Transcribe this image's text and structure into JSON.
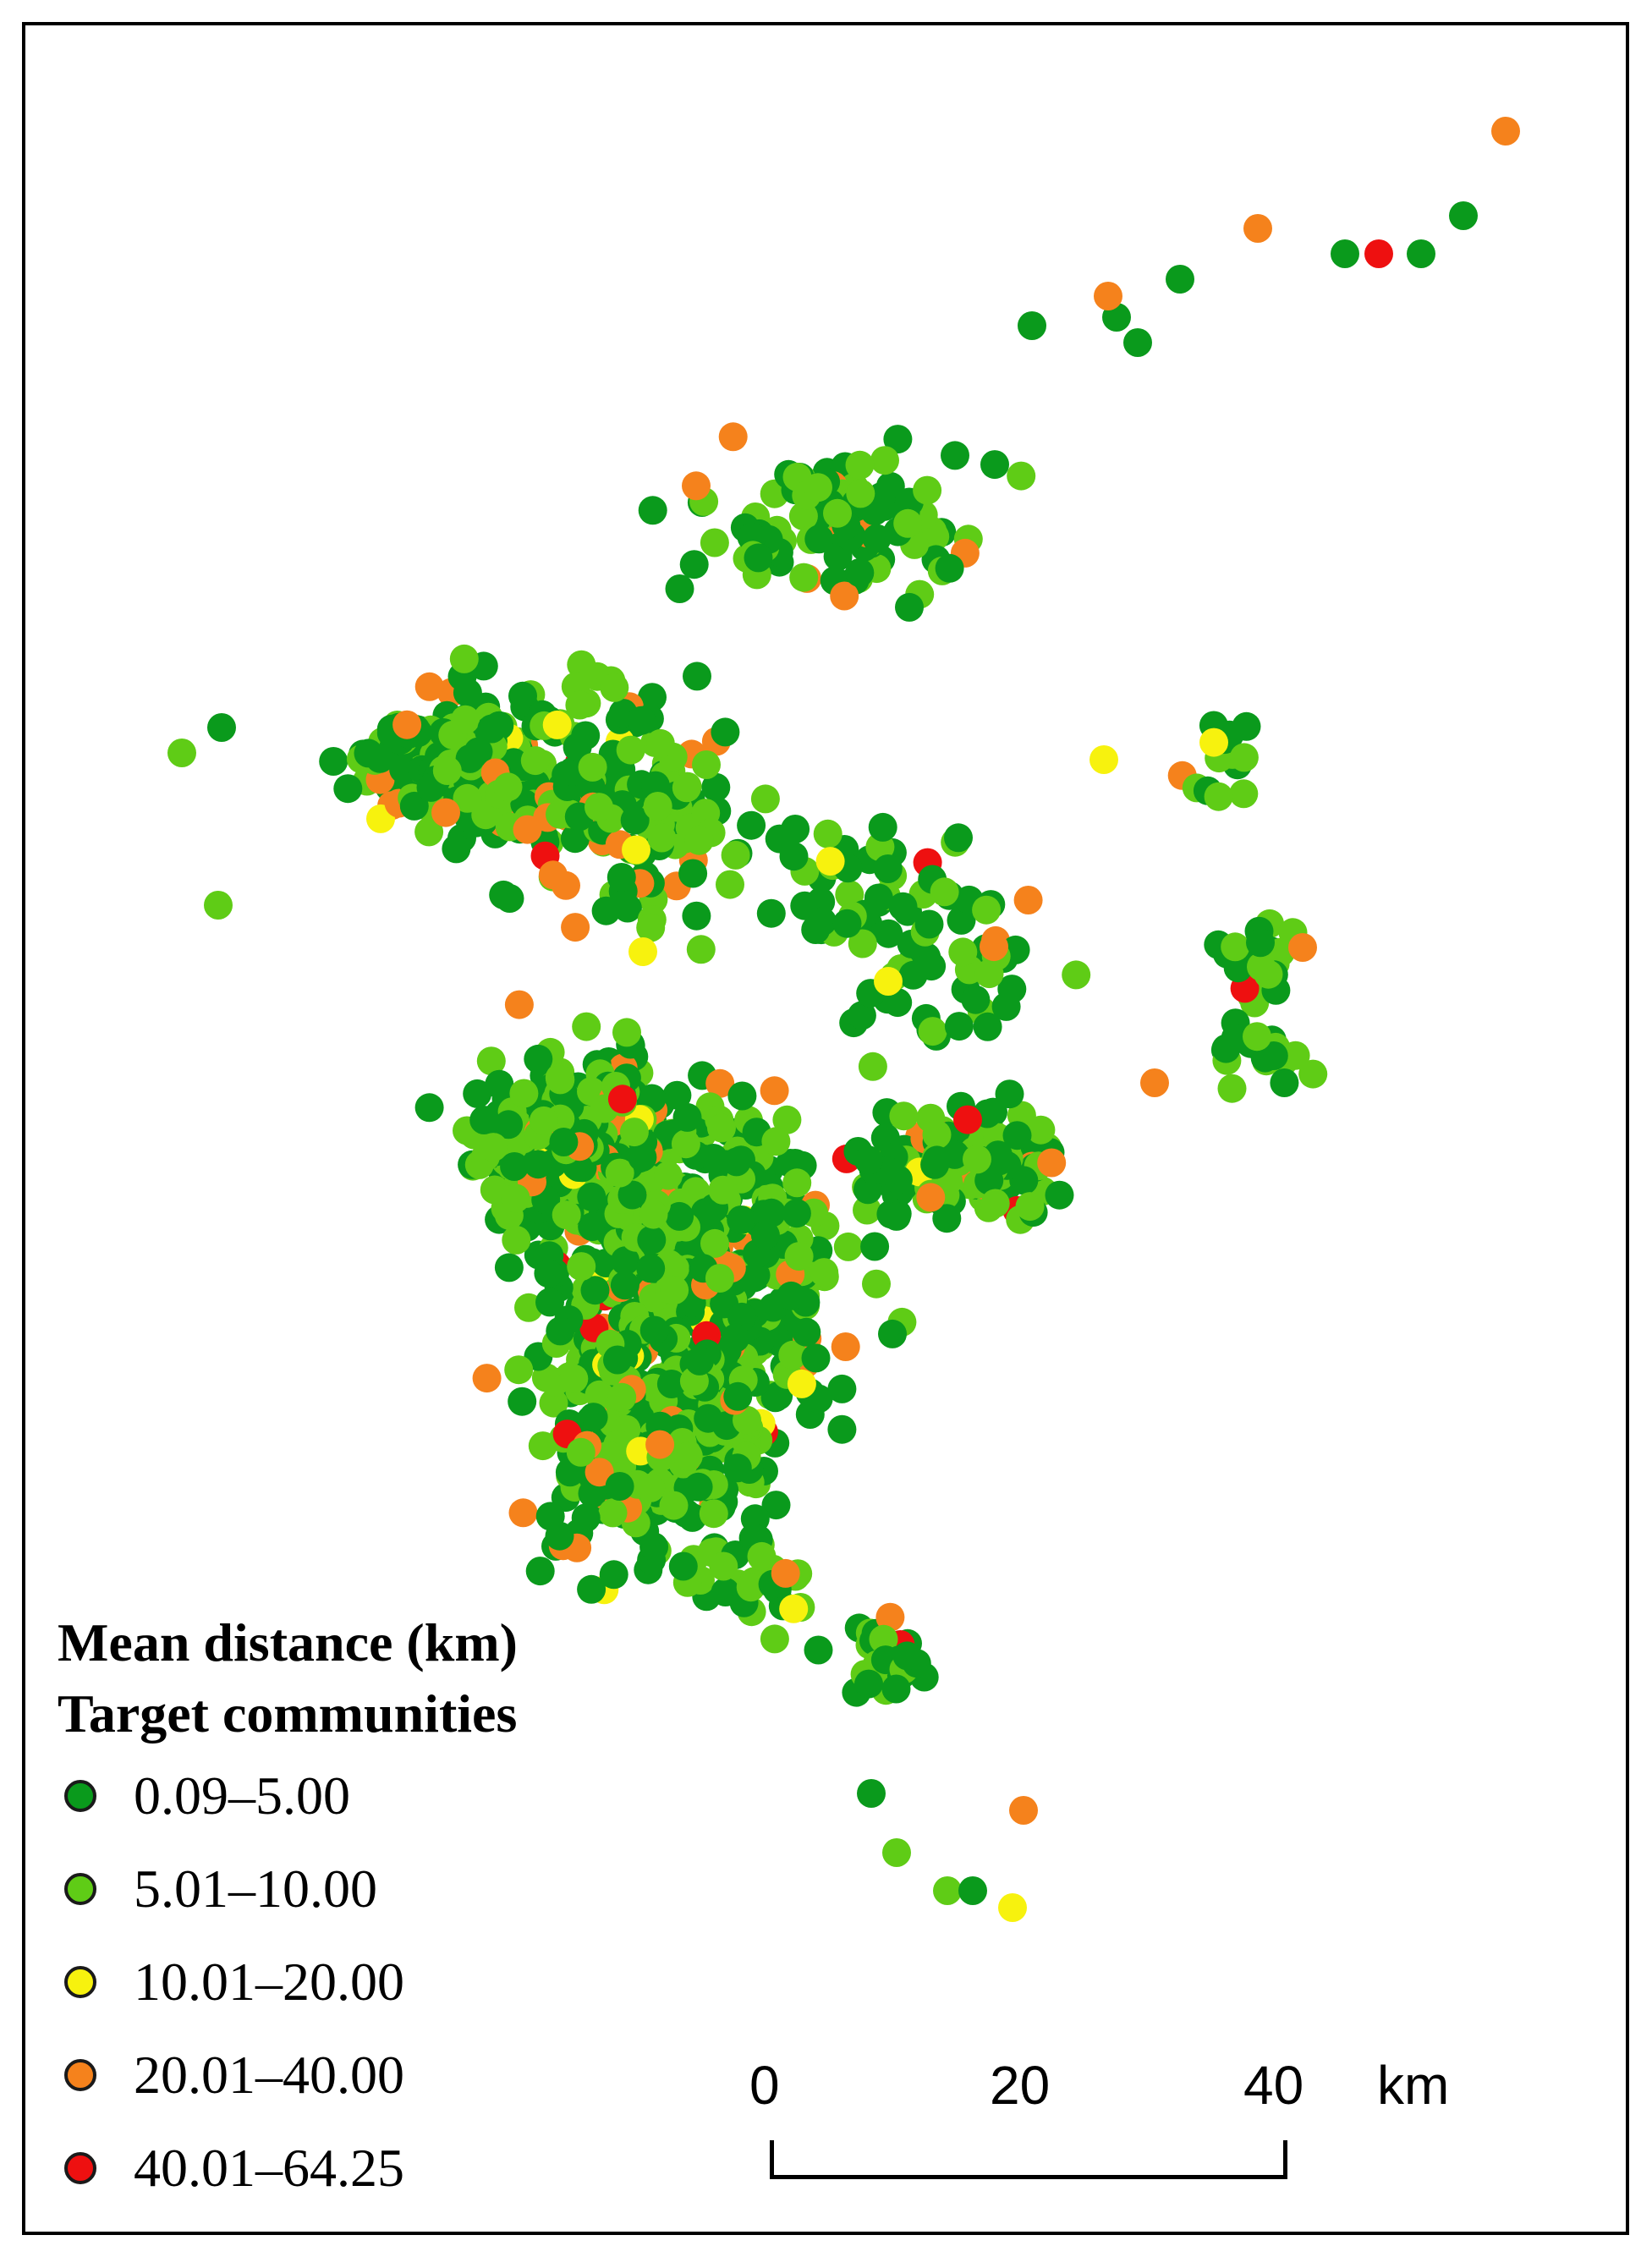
{
  "colors": {
    "class_1": "#0a9a1c",
    "class_2": "#5fcc16",
    "class_3": "#f7f20e",
    "class_4": "#f5821c",
    "class_5": "#ee1010",
    "frame": "#000000"
  },
  "legend": {
    "title_line1": "Mean distance (km)",
    "title_line2": "Target communities",
    "classes": [
      {
        "label": "0.09–5.00",
        "color": "#0a9a1c"
      },
      {
        "label": "5.01–10.00",
        "color": "#5fcc16"
      },
      {
        "label": "10.01–20.00",
        "color": "#f7f20e"
      },
      {
        "label": "20.01–40.00",
        "color": "#f5821c"
      },
      {
        "label": "40.01–64.25",
        "color": "#ee1010"
      }
    ]
  },
  "scale_bar": {
    "ticks": [
      "0",
      "20",
      "40"
    ],
    "unit": "km"
  }
}
